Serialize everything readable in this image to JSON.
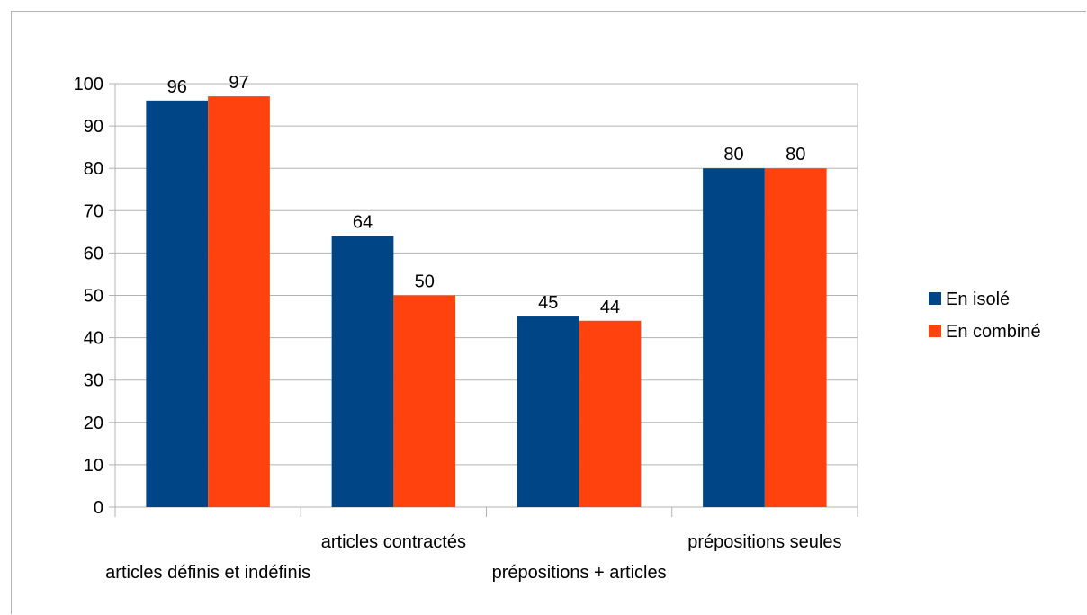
{
  "chart_data": {
    "type": "bar",
    "categories": [
      "articles définis et indéfinis",
      "articles contractés",
      "prépositions + articles",
      "prépositions seules"
    ],
    "series": [
      {
        "name": "En isolé",
        "color": "#004586",
        "values": [
          96,
          64,
          45,
          80
        ]
      },
      {
        "name": "En combiné",
        "color": "#ff420e",
        "values": [
          97,
          50,
          44,
          80
        ]
      }
    ],
    "ylim": [
      0,
      100
    ],
    "yticks": [
      0,
      10,
      20,
      30,
      40,
      50,
      60,
      70,
      80,
      90,
      100
    ],
    "grid": true,
    "legend_position": "right",
    "data_labels": true
  }
}
